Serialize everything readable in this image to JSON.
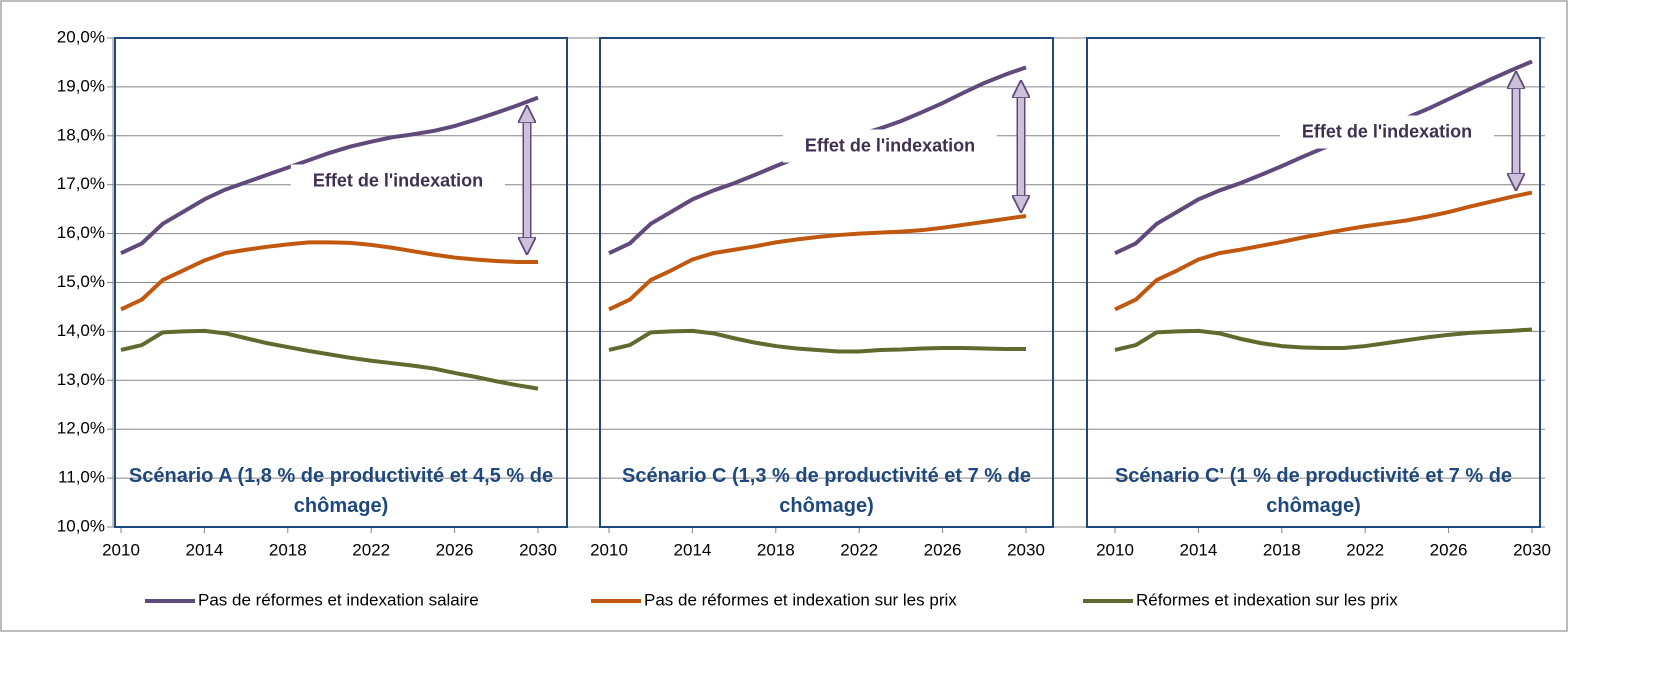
{
  "chart_data": {
    "type": "line",
    "x": [
      2010,
      2011,
      2012,
      2013,
      2014,
      2015,
      2016,
      2017,
      2018,
      2019,
      2020,
      2021,
      2022,
      2023,
      2024,
      2025,
      2026,
      2027,
      2028,
      2029,
      2030
    ],
    "xlim": [
      2010,
      2030
    ],
    "xticks": [
      2010,
      2014,
      2018,
      2022,
      2026,
      2030
    ],
    "ylim": [
      10,
      20
    ],
    "yticks": [
      {
        "value": 10,
        "label": "10,0%"
      },
      {
        "value": 11,
        "label": "11,0%"
      },
      {
        "value": 12,
        "label": "12,0%"
      },
      {
        "value": 13,
        "label": "13,0%"
      },
      {
        "value": 14,
        "label": "14,0%"
      },
      {
        "value": 15,
        "label": "15,0%"
      },
      {
        "value": 16,
        "label": "16,0%"
      },
      {
        "value": 17,
        "label": "17,0%"
      },
      {
        "value": 18,
        "label": "18,0%"
      },
      {
        "value": 19,
        "label": "19,0%"
      },
      {
        "value": 20,
        "label": "20,0%"
      }
    ],
    "grid": true,
    "legend": "bottom",
    "series": [
      {
        "name": "Pas de réformes et indexation salaire",
        "color": "#604a7b"
      },
      {
        "name": "Pas de réformes et indexation sur les prix",
        "color": "#c0580f"
      },
      {
        "name": "Réformes et indexation sur les prix",
        "color": "#5f6b2e"
      }
    ],
    "panels": [
      {
        "title": "Scénario A (1,8 % de productivité et  4,5 % de chômage)",
        "annotation": "Effet de l'indexation",
        "series": [
          {
            "values": [
              15.6,
              15.8,
              16.2,
              16.45,
              16.7,
              16.9,
              17.05,
              17.2,
              17.35,
              17.5,
              17.65,
              17.78,
              17.88,
              17.97,
              18.03,
              18.1,
              18.2,
              18.33,
              18.47,
              18.62,
              18.78
            ]
          },
          {
            "values": [
              14.45,
              14.65,
              15.05,
              15.25,
              15.45,
              15.6,
              15.67,
              15.73,
              15.78,
              15.82,
              15.82,
              15.81,
              15.77,
              15.71,
              15.64,
              15.57,
              15.51,
              15.47,
              15.44,
              15.42,
              15.42
            ]
          },
          {
            "values": [
              13.62,
              13.72,
              13.98,
              14.0,
              14.01,
              13.96,
              13.86,
              13.76,
              13.68,
              13.6,
              13.53,
              13.46,
              13.4,
              13.35,
              13.3,
              13.24,
              13.15,
              13.07,
              12.98,
              12.9,
              12.83
            ]
          }
        ]
      },
      {
        "title": "Scénario C (1,3 % de productivité et 7 % de chômage)",
        "annotation": "Effet de l'indexation",
        "series": [
          {
            "values": [
              15.6,
              15.8,
              16.2,
              16.45,
              16.7,
              16.88,
              17.03,
              17.2,
              17.38,
              17.55,
              17.72,
              17.88,
              18.02,
              18.15,
              18.3,
              18.48,
              18.67,
              18.88,
              19.08,
              19.25,
              19.4
            ]
          },
          {
            "values": [
              14.45,
              14.65,
              15.05,
              15.25,
              15.47,
              15.6,
              15.67,
              15.74,
              15.82,
              15.88,
              15.93,
              15.97,
              16.0,
              16.02,
              16.04,
              16.07,
              16.12,
              16.18,
              16.24,
              16.3,
              16.36
            ]
          },
          {
            "values": [
              13.62,
              13.72,
              13.98,
              14.0,
              14.01,
              13.96,
              13.86,
              13.77,
              13.7,
              13.65,
              13.62,
              13.59,
              13.59,
              13.62,
              13.63,
              13.65,
              13.66,
              13.66,
              13.65,
              13.64,
              13.64
            ]
          }
        ]
      },
      {
        "title": "Scénario C' (1 % de productivité et 7 % de chômage)",
        "annotation": "Effet de l'indexation",
        "series": [
          {
            "values": [
              15.6,
              15.8,
              16.2,
              16.45,
              16.7,
              16.88,
              17.03,
              17.2,
              17.38,
              17.57,
              17.75,
              17.9,
              18.05,
              18.2,
              18.37,
              18.55,
              18.75,
              18.95,
              19.15,
              19.34,
              19.52
            ]
          },
          {
            "values": [
              14.45,
              14.65,
              15.05,
              15.25,
              15.47,
              15.6,
              15.67,
              15.75,
              15.83,
              15.92,
              16.0,
              16.08,
              16.15,
              16.21,
              16.27,
              16.35,
              16.44,
              16.55,
              16.65,
              16.75,
              16.84
            ]
          },
          {
            "values": [
              13.62,
              13.72,
              13.98,
              14.0,
              14.01,
              13.96,
              13.85,
              13.76,
              13.7,
              13.67,
              13.66,
              13.66,
              13.7,
              13.76,
              13.82,
              13.88,
              13.93,
              13.97,
              13.99,
              14.01,
              14.04
            ]
          }
        ]
      }
    ]
  }
}
